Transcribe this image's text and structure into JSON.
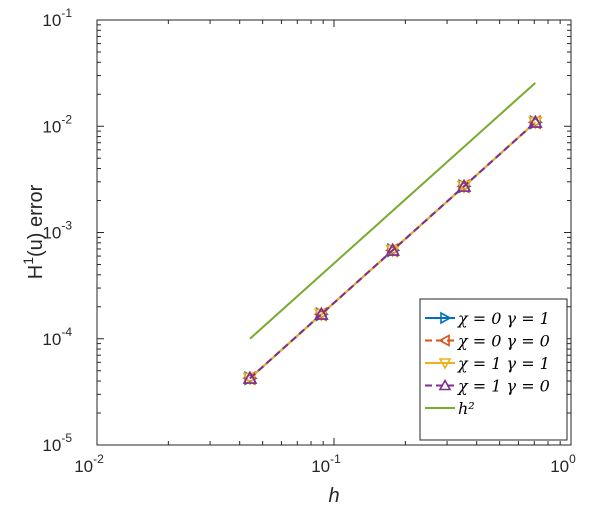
{
  "chart_data": {
    "type": "line",
    "title": "",
    "xlabel": "h",
    "ylabel_base": "H",
    "ylabel_sup": "1",
    "ylabel_rest": "(u) error",
    "xscale": "log",
    "yscale": "log",
    "xlim": [
      0.01,
      1
    ],
    "ylim": [
      1e-05,
      0.1
    ],
    "x_ticks": [
      {
        "value": 0.01,
        "base": "10",
        "exp": "-2"
      },
      {
        "value": 0.1,
        "base": "10",
        "exp": "-1"
      },
      {
        "value": 1,
        "base": "10",
        "exp": "0"
      }
    ],
    "y_ticks": [
      {
        "value": 1e-05,
        "base": "10",
        "exp": "-5"
      },
      {
        "value": 0.0001,
        "base": "10",
        "exp": "-4"
      },
      {
        "value": 0.001,
        "base": "10",
        "exp": "-3"
      },
      {
        "value": 0.01,
        "base": "10",
        "exp": "-2"
      },
      {
        "value": 0.1,
        "base": "10",
        "exp": "-1"
      }
    ],
    "grid": false,
    "legend_position": "bottom-right",
    "series": [
      {
        "name": "χ = 0  γ = 1",
        "color": "#0072BD",
        "marker": "triangle-right",
        "dash": false,
        "x": [
          0.0442,
          0.0884,
          0.1768,
          0.3536,
          0.7071
        ],
        "y": [
          4.25e-05,
          0.00017,
          0.00068,
          0.00272,
          0.0109
        ]
      },
      {
        "name": "χ = 0  γ = 0",
        "color": "#D95319",
        "marker": "triangle-left",
        "dash": true,
        "x": [
          0.0442,
          0.0884,
          0.1768,
          0.3536,
          0.7071
        ],
        "y": [
          4.25e-05,
          0.00017,
          0.00068,
          0.00272,
          0.0109
        ]
      },
      {
        "name": "χ = 1  γ = 1",
        "color": "#EDB120",
        "marker": "triangle-down",
        "dash": false,
        "x": [
          0.0442,
          0.0884,
          0.1768,
          0.3536,
          0.7071
        ],
        "y": [
          4.25e-05,
          0.00017,
          0.00068,
          0.00272,
          0.0109
        ]
      },
      {
        "name": "χ = 1  γ = 0",
        "color": "#7E2F8E",
        "marker": "triangle-up",
        "dash": true,
        "x": [
          0.0442,
          0.0884,
          0.1768,
          0.3536,
          0.7071
        ],
        "y": [
          4.25e-05,
          0.00017,
          0.00068,
          0.00272,
          0.0109
        ]
      },
      {
        "name": "h²",
        "color": "#77AC30",
        "marker": "none",
        "dash": false,
        "x": [
          0.0442,
          0.7071
        ],
        "y": [
          0.0001,
          0.0256
        ]
      }
    ]
  }
}
